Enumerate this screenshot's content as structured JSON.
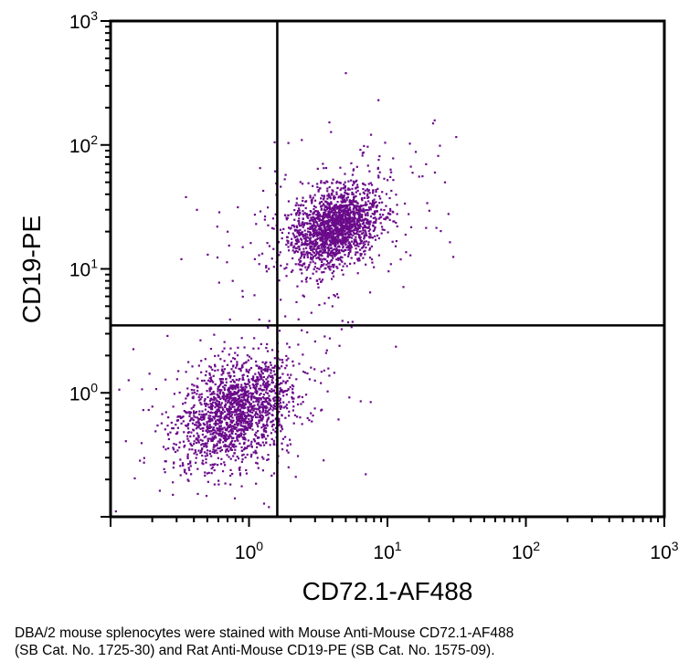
{
  "chart_data": {
    "type": "scatter",
    "title": "",
    "xlabel": "CD72.1-AF488",
    "ylabel": "CD19-PE",
    "x_scale": "log",
    "y_scale": "log",
    "xlim": [
      0.1,
      1000
    ],
    "ylim": [
      0.1,
      1000
    ],
    "x_ticks": [
      {
        "base": "10",
        "exp": "0",
        "value": 1
      },
      {
        "base": "10",
        "exp": "1",
        "value": 10
      },
      {
        "base": "10",
        "exp": "2",
        "value": 100
      },
      {
        "base": "10",
        "exp": "3",
        "value": 1000
      }
    ],
    "y_ticks": [
      {
        "base": "10",
        "exp": "0",
        "value": 1
      },
      {
        "base": "10",
        "exp": "1",
        "value": 10
      },
      {
        "base": "10",
        "exp": "2",
        "value": 100
      },
      {
        "base": "10",
        "exp": "3",
        "value": 1000
      }
    ],
    "quadrant_gates": {
      "x": 1.6,
      "y": 3.5
    },
    "grid": false,
    "point_color": "#6a0a8a",
    "populations": [
      {
        "center": [
          0.8,
          0.7
        ],
        "spread": [
          0.2,
          0.2
        ],
        "count": 1800
      },
      {
        "center": [
          4.2,
          22
        ],
        "spread": [
          0.16,
          0.15
        ],
        "count": 1900
      }
    ],
    "sparse_points": [
      [
        5,
        380
      ],
      [
        8.6,
        230
      ],
      [
        19,
        70
      ],
      [
        16,
        88
      ],
      [
        26,
        50
      ],
      [
        22,
        60
      ],
      [
        0.42,
        30
      ],
      [
        0.7,
        20
      ],
      [
        0.9,
        15
      ],
      [
        1.1,
        12
      ],
      [
        0.35,
        38
      ],
      [
        1.3,
        25
      ],
      [
        2.4,
        3.2
      ],
      [
        3.0,
        2.6
      ],
      [
        3.6,
        2.1
      ],
      [
        2.8,
        1.6
      ],
      [
        4.5,
        2.4
      ],
      [
        3.3,
        1.2
      ],
      [
        2.1,
        0.9
      ],
      [
        5.5,
        3.4
      ],
      [
        2.5,
        6
      ],
      [
        3.1,
        8
      ],
      [
        2.2,
        5.4
      ],
      [
        4.0,
        5.0
      ]
    ]
  },
  "caption": {
    "line1": "DBA/2 mouse splenocytes were stained with Mouse Anti-Mouse CD72.1-AF488",
    "line2": "(SB Cat. No. 1725-30) and Rat Anti-Mouse CD19-PE (SB Cat. No. 1575-09)."
  }
}
